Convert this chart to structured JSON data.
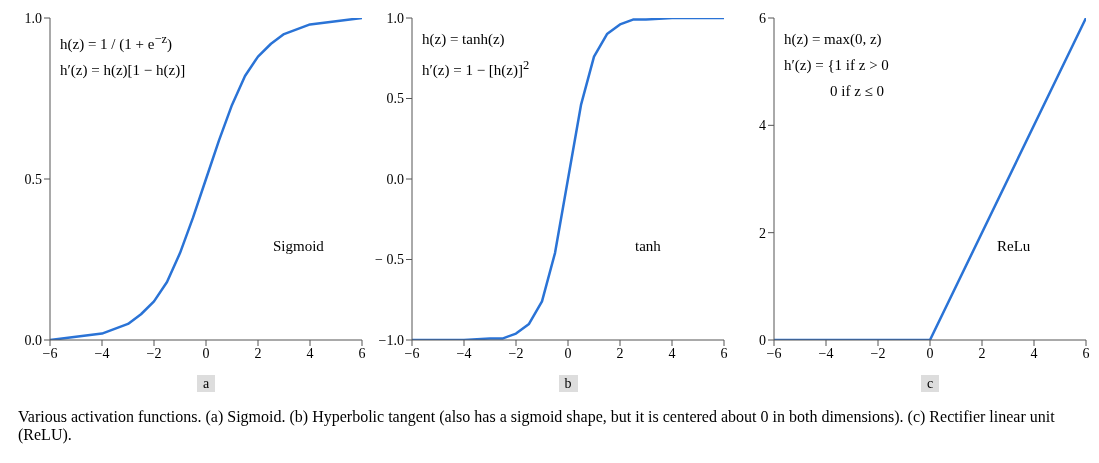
{
  "chart_data": [
    {
      "type": "line",
      "xlabel": "a",
      "x": [
        -6,
        -5,
        -4,
        -3,
        -2.5,
        -2,
        -1.5,
        -1,
        -0.5,
        0,
        0.5,
        1,
        1.5,
        2,
        2.5,
        3,
        4,
        5,
        6
      ],
      "series": [
        {
          "color": "#2a73d6",
          "values": [
            0,
            0.01,
            0.02,
            0.05,
            0.08,
            0.12,
            0.18,
            0.27,
            0.38,
            0.5,
            0.62,
            0.73,
            0.82,
            0.88,
            0.92,
            0.95,
            0.98,
            0.99,
            1
          ]
        }
      ],
      "xlim": [
        -6,
        6
      ],
      "xticks": [
        {
          "value": -6,
          "label": "−6"
        },
        {
          "value": -4,
          "label": "−4"
        },
        {
          "value": -2,
          "label": "−2"
        },
        0,
        2,
        4,
        6
      ],
      "ylim": [
        0,
        1
      ],
      "yticks": [
        {
          "value": 0,
          "label": "0.0"
        },
        0.5,
        {
          "value": 1,
          "label": "1.0"
        }
      ],
      "grid": false,
      "legend": false,
      "marker": "none",
      "line_style": "solid",
      "annotations": [
        "h(z) = 1 / (1 + e$^{−z}$)",
        "h′(z) = h(z)[1 − h(z)]",
        "Sigmoid",
        "Various activation functions. (a) Sigmoid. (b) Hyperbolic tangent (also has a sigmoid shape, but it is centered about 0 in both dimensions). (c) Rectifier linear unit (ReLU)."
      ]
    },
    {
      "type": "line",
      "xlabel": "b",
      "x": [
        -6,
        -4,
        -3,
        -2.5,
        -2,
        -1.5,
        -1,
        -0.5,
        0,
        0.5,
        1,
        1.5,
        2,
        2.5,
        3,
        4,
        6
      ],
      "series": [
        {
          "color": "#2a73d6",
          "values": [
            -1,
            -1,
            -0.99,
            -0.99,
            -0.96,
            -0.9,
            -0.76,
            -0.46,
            0,
            0.46,
            0.76,
            0.9,
            0.96,
            0.99,
            0.99,
            1,
            1
          ]
        }
      ],
      "xlim": [
        -6,
        6
      ],
      "xticks": [
        {
          "value": -6,
          "label": "−6"
        },
        {
          "value": -4,
          "label": "−4"
        },
        {
          "value": -2,
          "label": "−2"
        },
        0,
        2,
        4,
        6
      ],
      "ylim": [
        -1,
        1
      ],
      "yticks": [
        {
          "value": -1,
          "label": "−1.0"
        },
        {
          "value": -0.5,
          "label": "− 0.5"
        },
        {
          "value": 0,
          "label": "0.0"
        },
        0.5,
        {
          "value": 1,
          "label": "1.0"
        }
      ],
      "grid": false,
      "legend": false,
      "marker": "none",
      "line_style": "solid",
      "annotations": [
        "h(z) = tanh(z)",
        "h′(z) = 1 − [h(z)]$^{2}$",
        "tanh"
      ]
    },
    {
      "type": "line",
      "xlabel": "c",
      "x": [
        -6,
        0,
        6
      ],
      "series": [
        {
          "color": "#2a73d6",
          "values": [
            0,
            0,
            6
          ]
        }
      ],
      "xlim": [
        -6,
        6
      ],
      "xticks": [
        {
          "value": -6,
          "label": "−6"
        },
        {
          "value": -4,
          "label": "−4"
        },
        {
          "value": -2,
          "label": "−2"
        },
        0,
        2,
        4,
        6
      ],
      "ylim": [
        0,
        6
      ],
      "yticks": [
        0,
        2,
        4,
        6
      ],
      "grid": false,
      "legend": false,
      "marker": "none",
      "line_style": "solid",
      "annotations": [
        "h(z) = max(0, z)",
        "h′(z) = {1  if z > 0",
        "0  if z ≤ 0",
        "ReLu"
      ]
    }
  ]
}
